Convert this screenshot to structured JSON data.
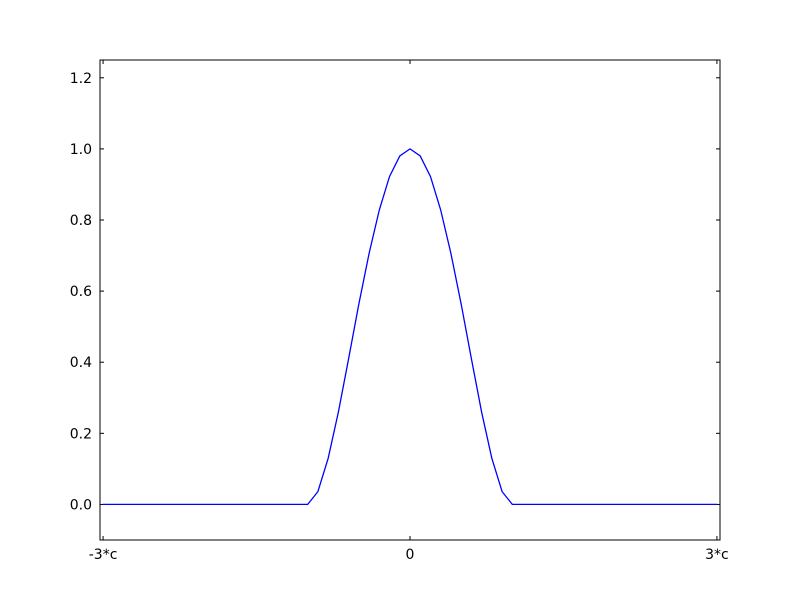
{
  "chart_data": {
    "type": "line",
    "title": "",
    "xlabel": "",
    "ylabel": "",
    "x_unit": "c",
    "xlim": [
      -3.03,
      3.03
    ],
    "ylim": [
      -0.1,
      1.25
    ],
    "grid": false,
    "x_ticks": [
      {
        "value": -3,
        "label": "-3*c"
      },
      {
        "value": 0,
        "label": "0"
      },
      {
        "value": 3,
        "label": "3*c"
      }
    ],
    "y_ticks": [
      {
        "value": 0.0,
        "label": "0.0"
      },
      {
        "value": 0.2,
        "label": "0.2"
      },
      {
        "value": 0.4,
        "label": "0.4"
      },
      {
        "value": 0.6,
        "label": "0.6"
      },
      {
        "value": 0.8,
        "label": "0.8"
      },
      {
        "value": 1.0,
        "label": "1.0"
      },
      {
        "value": 1.2,
        "label": "1.2"
      }
    ],
    "series": [
      {
        "color": "#0000ff",
        "x": [
          -3,
          -2,
          -1.0,
          -0.9,
          -0.8,
          -0.7,
          -0.6,
          -0.5,
          -0.4,
          -0.3,
          -0.2,
          -0.1,
          0,
          0.1,
          0.2,
          0.3,
          0.4,
          0.5,
          0.6,
          0.7,
          0.8,
          0.9,
          1.0,
          2,
          3
        ],
        "y": [
          0,
          0,
          0,
          0.036,
          0.13,
          0.26,
          0.41,
          0.563,
          0.706,
          0.828,
          0.922,
          0.98,
          1.0,
          0.98,
          0.922,
          0.828,
          0.706,
          0.563,
          0.41,
          0.26,
          0.13,
          0.036,
          0,
          0,
          0
        ]
      }
    ]
  }
}
